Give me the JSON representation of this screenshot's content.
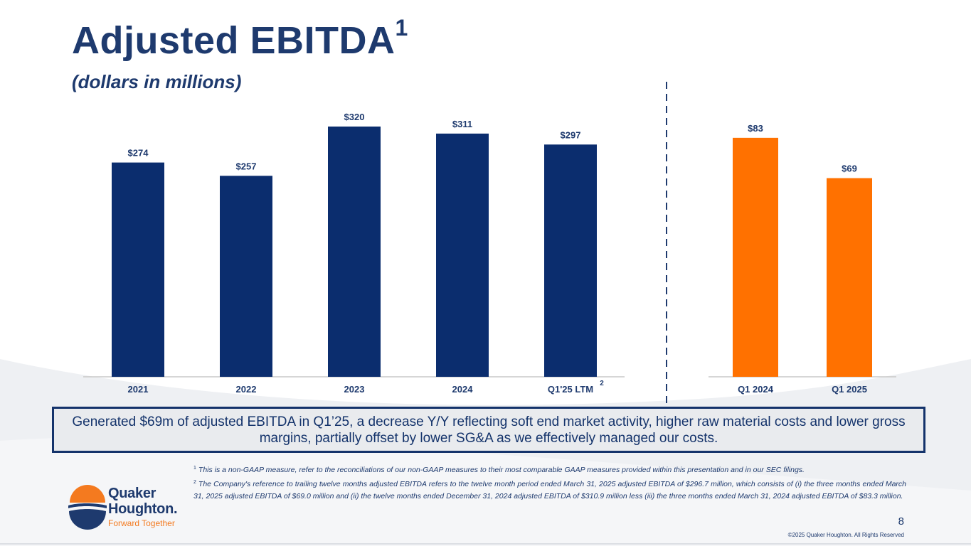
{
  "slide": {
    "title": "Adjusted EBITDA",
    "title_sup": "1",
    "subtitle": "(dollars in millions)",
    "page_number": "8",
    "copyright": "©2025 Quaker Houghton. All Rights Reserved"
  },
  "callout": "Generated $69m of adjusted EBITDA in Q1’25, a decrease Y/Y reflecting soft end market activity, higher raw material costs and lower gross margins, partially offset by lower SG&A as we effectively managed our costs.",
  "footnotes": [
    {
      "mark": "1",
      "text": "This is a non-GAAP measure, refer to the reconciliations of our non-GAAP measures to their most comparable GAAP measures provided within this presentation and in our SEC filings."
    },
    {
      "mark": "2",
      "text": "The Company's reference to trailing twelve months adjusted EBITDA refers to the twelve month period ended March 31, 2025 adjusted EBITDA of $296.7 million, which consists of (i) the three months ended March 31, 2025 adjusted EBITDA of $69.0 million and (ii) the twelve months ended December 31, 2024 adjusted EBITDA of $310.9 million less (iii) the three months ended March 31, 2024 adjusted EBITDA of $83.3 million."
    }
  ],
  "logo": {
    "name_line1": "Quaker",
    "name_line2": "Houghton.",
    "tagline": "Forward Together"
  },
  "colors": {
    "annual_bar": "#0b2d6e",
    "quarter_bar": "#ff7100",
    "text": "#1e3a6e",
    "axis": "#c8c8c8"
  },
  "chart_data": [
    {
      "type": "bar",
      "categories": [
        "2021",
        "2022",
        "2023",
        "2024",
        "Q1'25 LTM"
      ],
      "values": [
        274,
        257,
        320,
        311,
        297
      ],
      "labels": [
        "$274",
        "$257",
        "$320",
        "$311",
        "$297"
      ],
      "category_notes": [
        "",
        "",
        "",
        "",
        "2"
      ],
      "color": "#0b2d6e"
    },
    {
      "type": "bar",
      "categories": [
        "Q1 2024",
        "Q1 2025"
      ],
      "values": [
        83,
        69
      ],
      "labels": [
        "$83",
        "$69"
      ],
      "category_notes": [
        "",
        ""
      ],
      "color": "#ff7100"
    }
  ]
}
